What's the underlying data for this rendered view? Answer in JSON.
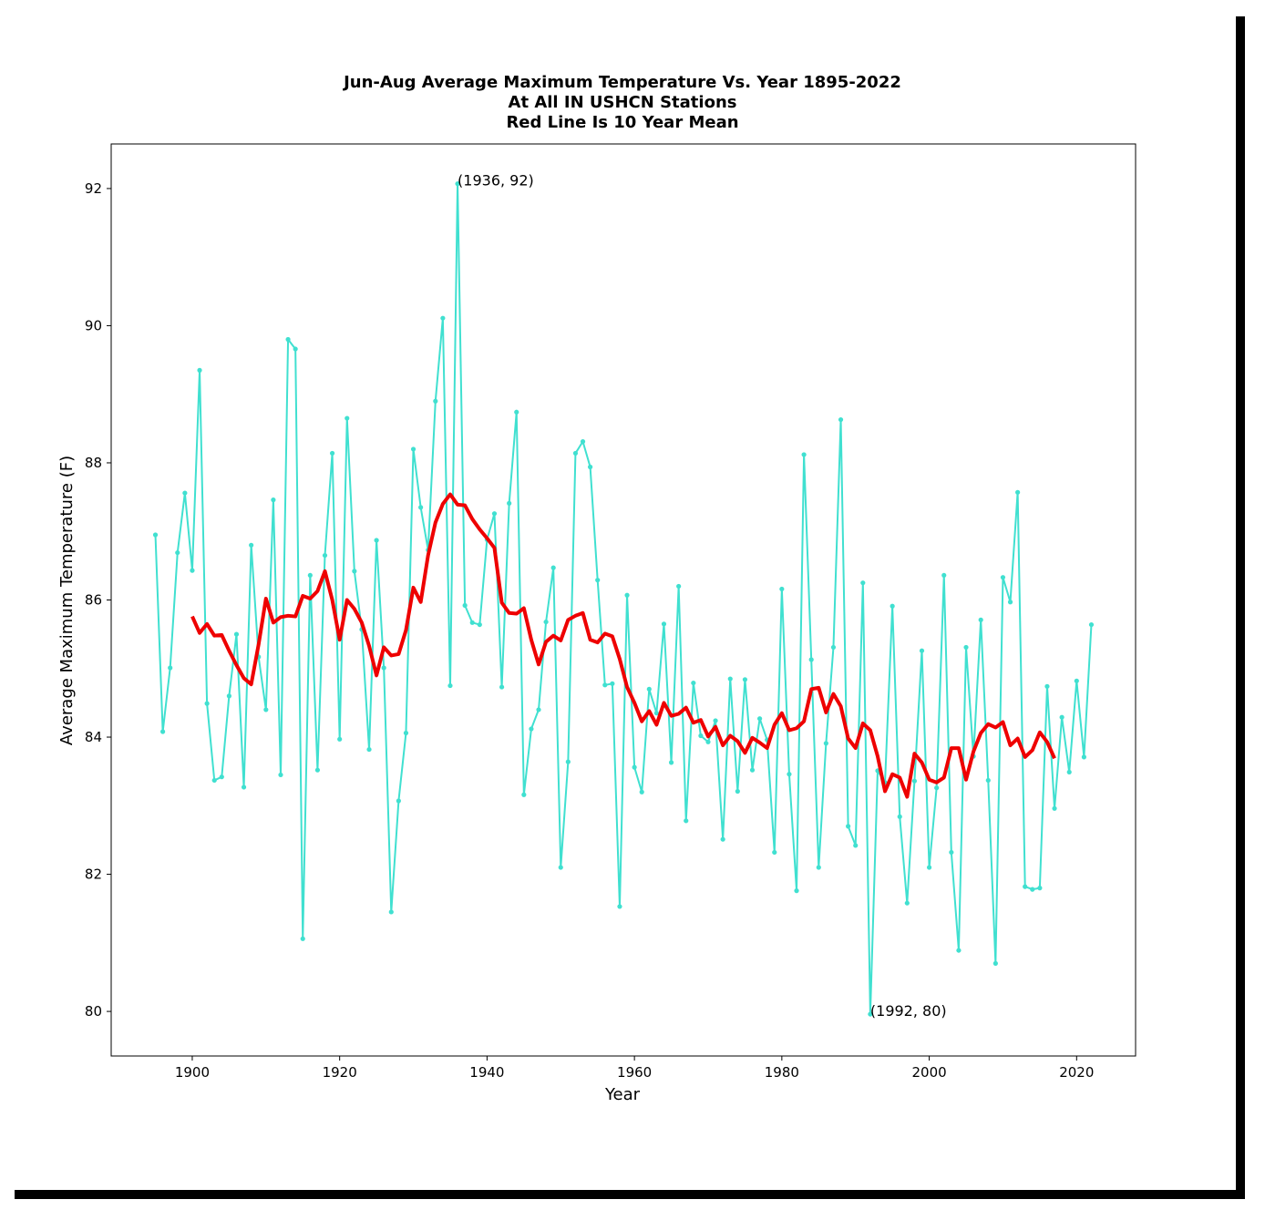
{
  "chart_data": {
    "type": "line",
    "title_lines": [
      "Jun-Aug Average Maximum Temperature Vs. Year 1895-2022",
      "At All IN USHCN Stations",
      "Red Line Is 10 Year Mean"
    ],
    "xlabel": "Year",
    "ylabel": "Average Maximum Temperature (F)",
    "xlim": [
      1889,
      2028
    ],
    "ylim": [
      79.35,
      92.65
    ],
    "xticks": [
      1900,
      1920,
      1940,
      1960,
      1980,
      2000,
      2020
    ],
    "yticks": [
      80,
      82,
      84,
      86,
      88,
      90,
      92
    ],
    "grid": false,
    "colors": {
      "annual": "#40e0d0",
      "mean": "#ee0000"
    },
    "annotations": [
      {
        "text": "(1936, 92)",
        "x": 1936,
        "y": 92.07
      },
      {
        "text": "(1992, 80)",
        "x": 1992,
        "y": 79.96
      }
    ],
    "series": [
      {
        "style": "annual",
        "x": [
          1895,
          1896,
          1897,
          1898,
          1899,
          1900,
          1901,
          1902,
          1903,
          1904,
          1905,
          1906,
          1907,
          1908,
          1909,
          1910,
          1911,
          1912,
          1913,
          1914,
          1915,
          1916,
          1917,
          1918,
          1919,
          1920,
          1921,
          1922,
          1923,
          1924,
          1925,
          1926,
          1927,
          1928,
          1929,
          1930,
          1931,
          1932,
          1933,
          1934,
          1935,
          1936,
          1937,
          1938,
          1939,
          1940,
          1941,
          1942,
          1943,
          1944,
          1945,
          1946,
          1947,
          1948,
          1949,
          1950,
          1951,
          1952,
          1953,
          1954,
          1955,
          1956,
          1957,
          1958,
          1959,
          1960,
          1961,
          1962,
          1963,
          1964,
          1965,
          1966,
          1967,
          1968,
          1969,
          1970,
          1971,
          1972,
          1973,
          1974,
          1975,
          1976,
          1977,
          1978,
          1979,
          1980,
          1981,
          1982,
          1983,
          1984,
          1985,
          1986,
          1987,
          1988,
          1989,
          1990,
          1991,
          1992,
          1993,
          1994,
          1995,
          1996,
          1997,
          1998,
          1999,
          2000,
          2001,
          2002,
          2003,
          2004,
          2005,
          2006,
          2007,
          2008,
          2009,
          2010,
          2011,
          2012,
          2013,
          2014,
          2015,
          2016,
          2017,
          2018,
          2019,
          2020,
          2021,
          2022
        ],
        "y": [
          86.95,
          84.08,
          85.01,
          86.69,
          87.56,
          86.43,
          89.35,
          84.49,
          83.37,
          83.42,
          84.6,
          85.5,
          83.27,
          86.8,
          85.17,
          84.4,
          87.46,
          83.45,
          89.8,
          89.66,
          81.06,
          86.36,
          83.52,
          86.65,
          88.14,
          83.97,
          88.65,
          86.42,
          85.57,
          83.82,
          86.87,
          85.01,
          81.45,
          83.07,
          84.06,
          88.2,
          87.35,
          86.73,
          88.9,
          90.11,
          84.75,
          92.07,
          85.92,
          85.67,
          85.64,
          86.88,
          87.26,
          84.73,
          87.41,
          88.74,
          83.16,
          84.12,
          84.4,
          85.68,
          86.47,
          82.1,
          83.64,
          88.14,
          88.31,
          87.94,
          86.29,
          84.76,
          84.78,
          81.53,
          86.07,
          83.56,
          83.2,
          84.7,
          84.35,
          85.65,
          83.63,
          86.2,
          82.78,
          84.79,
          84.02,
          83.93,
          84.24,
          82.51,
          84.85,
          83.21,
          84.84,
          83.52,
          84.27,
          83.96,
          82.32,
          86.16,
          83.46,
          81.76,
          88.12,
          85.13,
          82.1,
          83.91,
          85.31,
          88.63,
          82.7,
          82.42,
          86.25,
          79.96,
          83.51,
          83.34,
          85.91,
          82.84,
          81.58,
          83.36,
          85.26,
          82.1,
          83.26,
          86.36,
          82.32,
          80.89,
          85.31,
          83.72,
          85.71,
          83.37,
          80.7,
          86.33,
          85.97,
          87.57,
          81.82,
          81.78,
          81.8,
          84.74,
          82.96,
          84.29,
          83.49,
          84.82,
          83.71,
          85.64
        ]
      },
      {
        "style": "mean",
        "x": [
          1900,
          1901,
          1902,
          1903,
          1904,
          1905,
          1906,
          1907,
          1908,
          1909,
          1910,
          1911,
          1912,
          1913,
          1914,
          1915,
          1916,
          1917,
          1918,
          1919,
          1920,
          1921,
          1922,
          1923,
          1924,
          1925,
          1926,
          1927,
          1928,
          1929,
          1930,
          1931,
          1932,
          1933,
          1934,
          1935,
          1936,
          1937,
          1938,
          1939,
          1940,
          1941,
          1942,
          1943,
          1944,
          1945,
          1946,
          1947,
          1948,
          1949,
          1950,
          1951,
          1952,
          1953,
          1954,
          1955,
          1956,
          1957,
          1958,
          1959,
          1960,
          1961,
          1962,
          1963,
          1964,
          1965,
          1966,
          1967,
          1968,
          1969,
          1970,
          1971,
          1972,
          1973,
          1974,
          1975,
          1976,
          1977,
          1978,
          1979,
          1980,
          1981,
          1982,
          1983,
          1984,
          1985,
          1986,
          1987,
          1988,
          1989,
          1990,
          1991,
          1992,
          1993,
          1994,
          1995,
          1996,
          1997,
          1998,
          1999,
          2000,
          2001,
          2002,
          2003,
          2004,
          2005,
          2006,
          2007,
          2008,
          2009,
          2010,
          2011,
          2012,
          2013,
          2014,
          2015,
          2016,
          2017
        ],
        "y": [
          85.76,
          85.52,
          85.65,
          85.48,
          85.49,
          85.26,
          85.05,
          84.86,
          84.77,
          85.35,
          86.02,
          85.67,
          85.75,
          85.77,
          85.76,
          86.06,
          86.02,
          86.13,
          86.42,
          86.0,
          85.42,
          86.0,
          85.87,
          85.67,
          85.33,
          84.9,
          85.31,
          85.19,
          85.21,
          85.56,
          86.18,
          85.97,
          86.65,
          87.13,
          87.4,
          87.54,
          87.39,
          87.38,
          87.18,
          87.03,
          86.9,
          86.76,
          85.96,
          85.81,
          85.8,
          85.88,
          85.42,
          85.06,
          85.39,
          85.48,
          85.41,
          85.71,
          85.77,
          85.81,
          85.42,
          85.38,
          85.51,
          85.47,
          85.14,
          84.73,
          84.5,
          84.23,
          84.38,
          84.18,
          84.5,
          84.31,
          84.34,
          84.43,
          84.21,
          84.25,
          84.01,
          84.15,
          83.88,
          84.02,
          83.94,
          83.77,
          83.99,
          83.92,
          83.84,
          84.18,
          84.35,
          84.1,
          84.13,
          84.23,
          84.7,
          84.72,
          84.36,
          84.63,
          84.45,
          83.98,
          83.84,
          84.2,
          84.1,
          83.72,
          83.21,
          83.46,
          83.41,
          83.13,
          83.76,
          83.63,
          83.38,
          83.34,
          83.41,
          83.84,
          83.84,
          83.38,
          83.79,
          84.06,
          84.19,
          84.14,
          84.22,
          83.88,
          83.98,
          83.71,
          83.81,
          84.07,
          83.93,
          83.69
        ]
      }
    ]
  }
}
